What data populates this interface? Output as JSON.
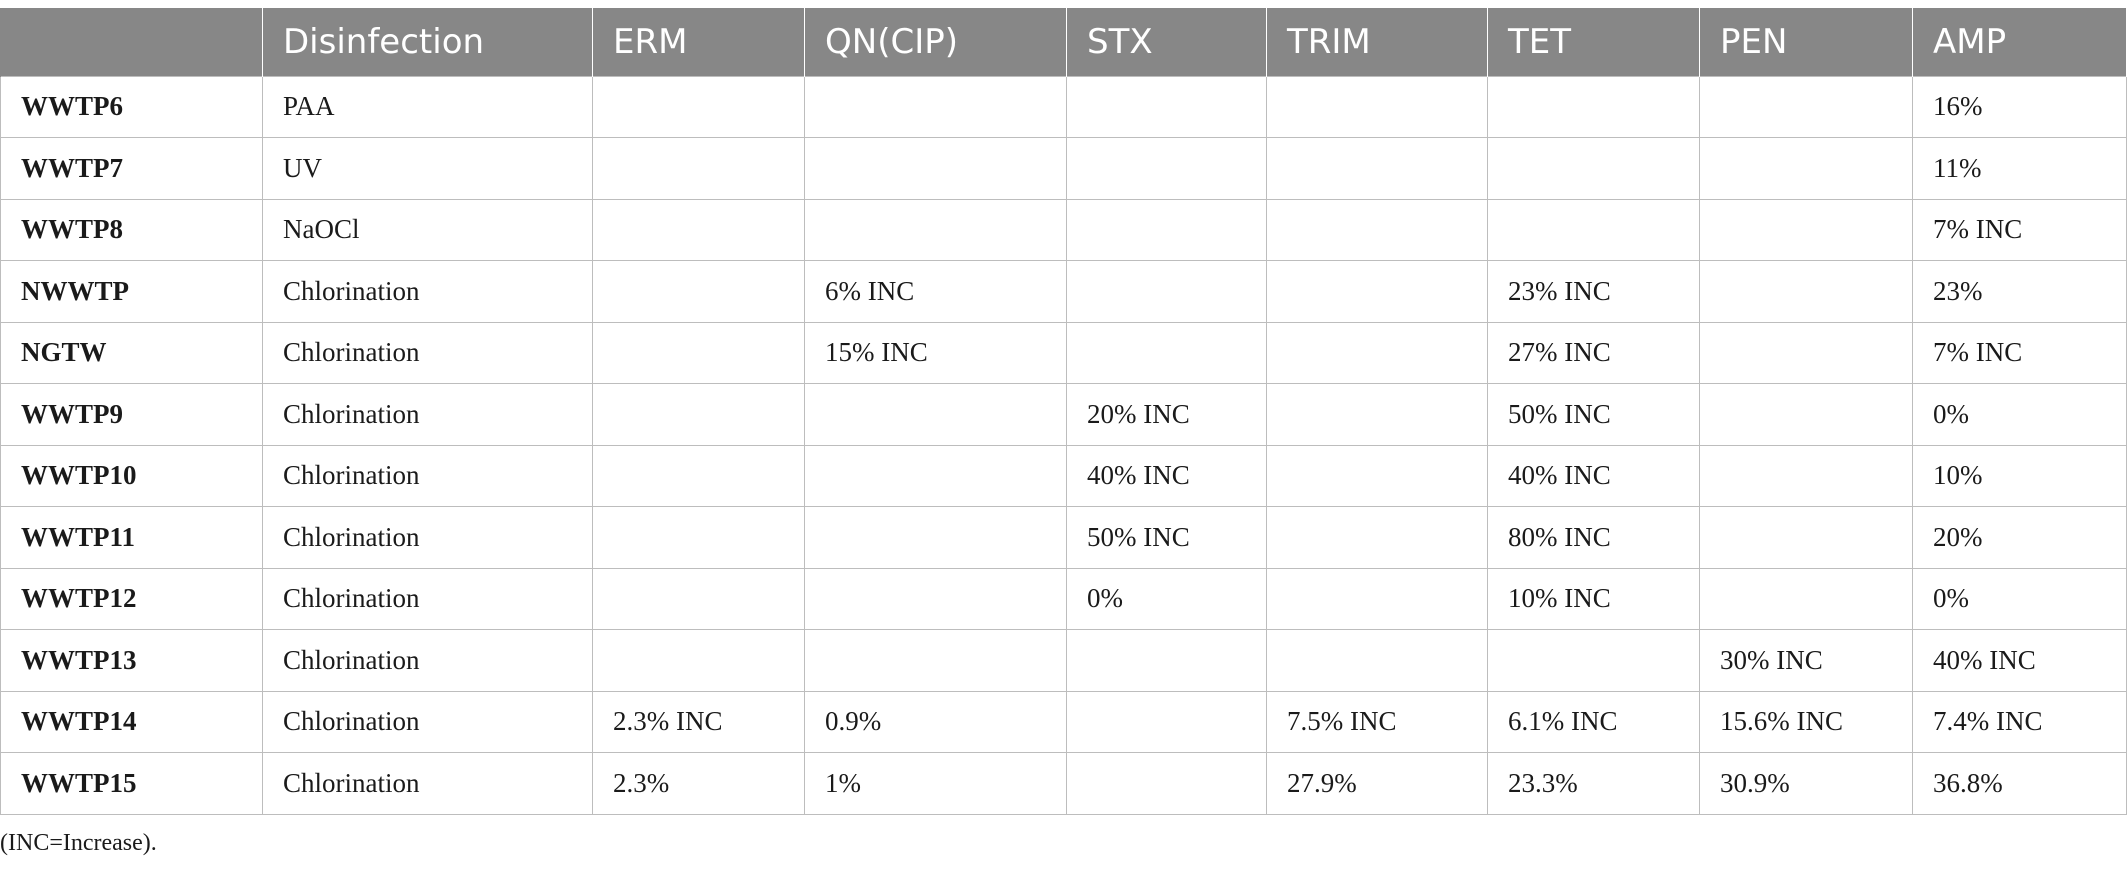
{
  "table": {
    "headers": [
      "",
      "Disinfection",
      "ERM",
      "QN(CIP)",
      "STX",
      "TRIM",
      "TET",
      "PEN",
      "AMP"
    ],
    "rows": [
      [
        "WWTP6",
        "PAA",
        "",
        "",
        "",
        "",
        "",
        "",
        "16%"
      ],
      [
        "WWTP7",
        "UV",
        "",
        "",
        "",
        "",
        "",
        "",
        "11%"
      ],
      [
        "WWTP8",
        "NaOCl",
        "",
        "",
        "",
        "",
        "",
        "",
        "7% INC"
      ],
      [
        "NWWTP",
        "Chlorination",
        "",
        "6% INC",
        "",
        "",
        "23% INC",
        "",
        "23%"
      ],
      [
        "NGTW",
        "Chlorination",
        "",
        "15% INC",
        "",
        "",
        "27% INC",
        "",
        "7% INC"
      ],
      [
        "WWTP9",
        "Chlorination",
        "",
        "",
        "20% INC",
        "",
        "50% INC",
        "",
        "0%"
      ],
      [
        "WWTP10",
        "Chlorination",
        "",
        "",
        "40% INC",
        "",
        "40% INC",
        "",
        "10%"
      ],
      [
        "WWTP11",
        "Chlorination",
        "",
        "",
        "50% INC",
        "",
        "80% INC",
        "",
        "20%"
      ],
      [
        "WWTP12",
        "Chlorination",
        "",
        "",
        "0%",
        "",
        "10% INC",
        "",
        "0%"
      ],
      [
        "WWTP13",
        "Chlorination",
        "",
        "",
        "",
        "",
        "",
        "30% INC",
        "40% INC"
      ],
      [
        "WWTP14",
        "Chlorination",
        "2.3% INC",
        "0.9%",
        "",
        "7.5% INC",
        "6.1% INC",
        "15.6% INC",
        "7.4% INC"
      ],
      [
        "WWTP15",
        "Chlorination",
        "2.3%",
        "1%",
        "",
        "27.9%",
        "23.3%",
        "30.9%",
        "36.8%"
      ]
    ]
  },
  "footnote": "(INC=Increase)."
}
